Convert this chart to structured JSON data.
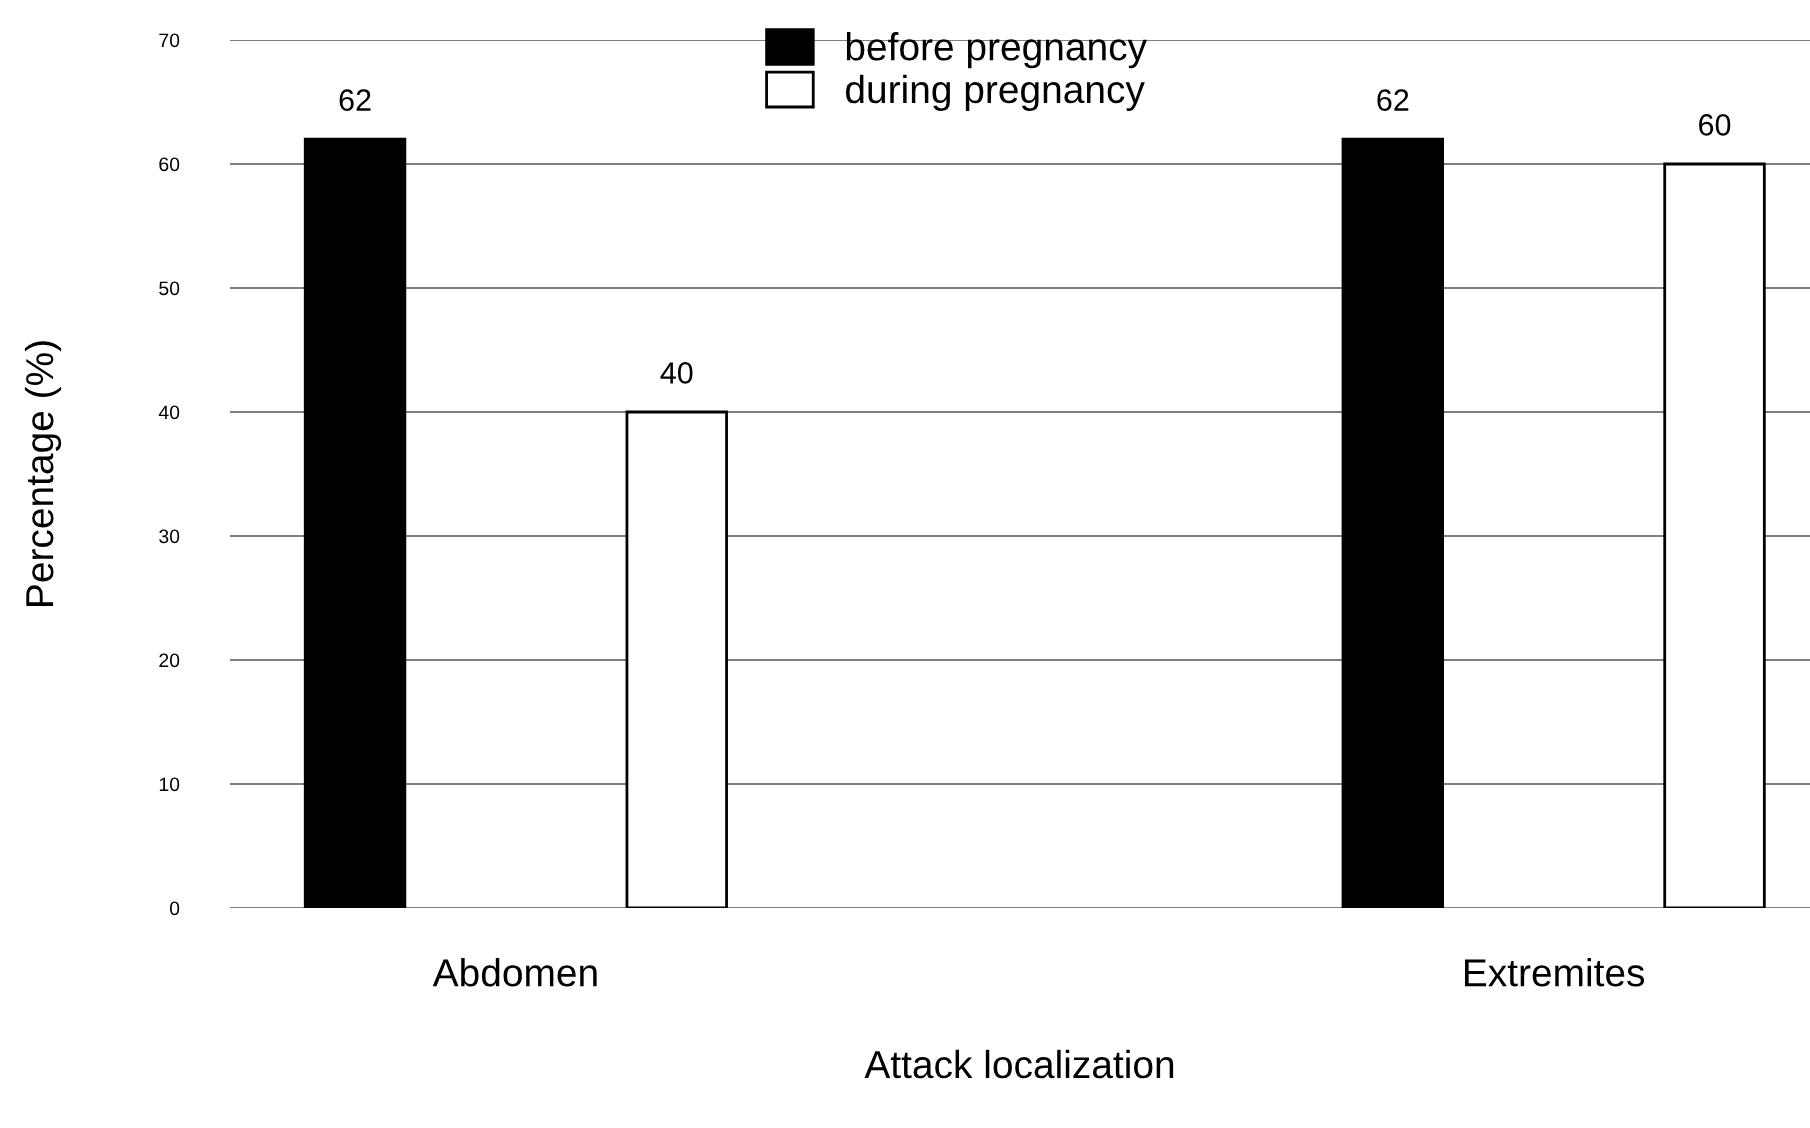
{
  "chart_data": {
    "type": "bar",
    "xlabel": "Attack localization",
    "ylabel": "Percentage (%)",
    "categories": [
      "Abdomen",
      "Extremites"
    ],
    "series": [
      {
        "name": "before pregnancy",
        "color": "#000000",
        "values": [
          62,
          62
        ]
      },
      {
        "name": "during pregnancy",
        "color": "#ffffff",
        "values": [
          40,
          60
        ]
      }
    ],
    "ylim": [
      0,
      70
    ],
    "yticks": [
      0,
      10,
      20,
      30,
      40,
      50,
      60,
      70
    ],
    "grid": "y",
    "legend": "top",
    "data_labels": true
  }
}
